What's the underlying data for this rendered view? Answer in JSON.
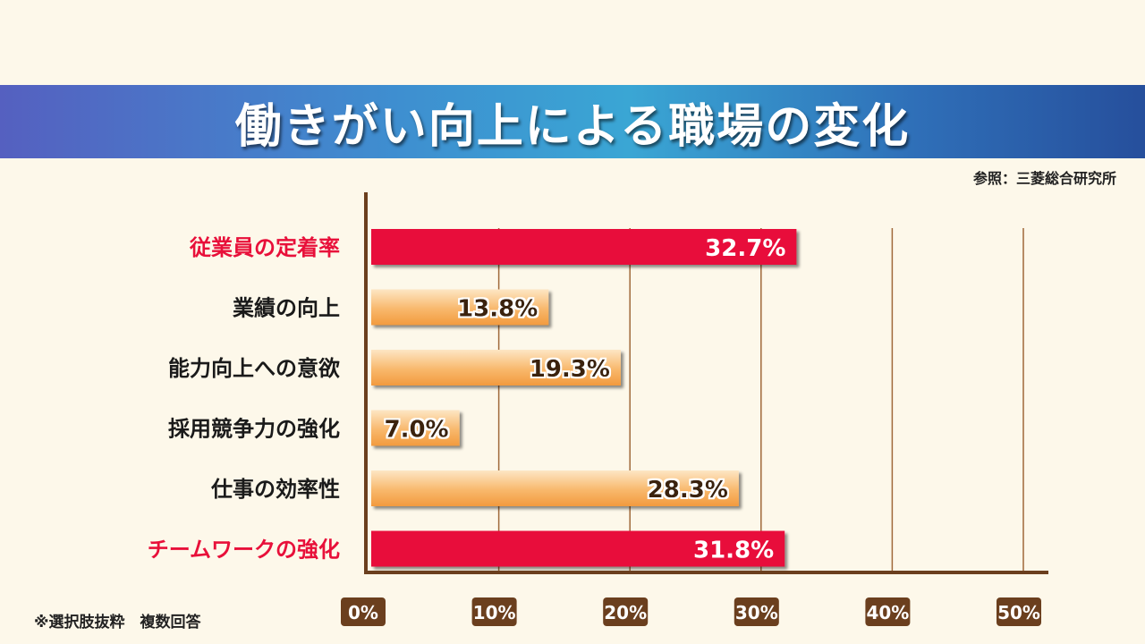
{
  "header": {
    "title": "働きがい向上による職場の変化",
    "source": "参照：三菱総合研究所"
  },
  "footnote": "※選択肢抜粋　複数回答",
  "colors": {
    "banner_start": "#5560c0",
    "banner_end": "#264f9c",
    "highlight_bar": "#e8103a",
    "normal_bar_top": "#fde0b8",
    "normal_bar_bottom": "#f5a24a",
    "highlight_label": "#e8103a",
    "normal_label": "#1a1a1a",
    "axis": "#6b3f1e",
    "tick_badge": "#6b3f1e"
  },
  "chart_data": {
    "type": "bar",
    "orientation": "horizontal",
    "title": "働きがい向上による職場の変化",
    "categories": [
      "従業員の定着率",
      "業績の向上",
      "能力向上への意欲",
      "採用競争力の強化",
      "仕事の効率性",
      "チームワークの強化"
    ],
    "values": [
      32.7,
      13.8,
      19.3,
      7.0,
      28.3,
      31.8
    ],
    "value_labels": [
      "32.7%",
      "13.8%",
      "19.3%",
      "7.0%",
      "28.3%",
      "31.8%"
    ],
    "highlighted": [
      true,
      false,
      false,
      false,
      false,
      true
    ],
    "xlim": [
      0,
      50
    ],
    "x_ticks": [
      0,
      10,
      20,
      30,
      40,
      50
    ],
    "x_tick_labels": [
      "0%",
      "10%",
      "20%",
      "30%",
      "40%",
      "50%"
    ],
    "grid": true,
    "legend": "none"
  }
}
